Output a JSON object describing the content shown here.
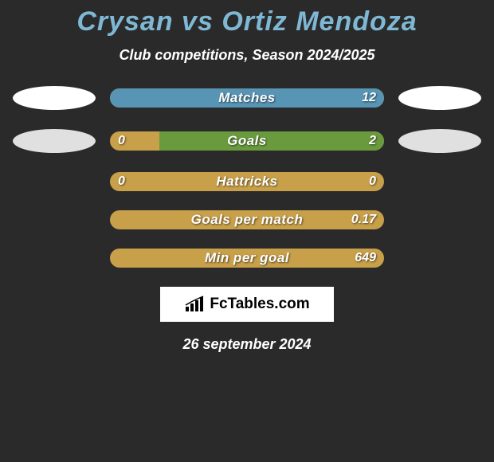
{
  "title": "Crysan vs Ortiz Mendoza",
  "subtitle": "Club competitions, Season 2024/2025",
  "date": "26 september 2024",
  "logo_text": "FcTables.com",
  "colors": {
    "background": "#2a2a2a",
    "title": "#7fb8d4",
    "text": "#ffffff",
    "bar_base": "#c8a04a",
    "bar_blue": "#5895b5",
    "bar_green": "#6a9a3e",
    "ellipse_white": "#ffffff",
    "ellipse_gray": "#e0e0e0",
    "logo_bg": "#ffffff"
  },
  "stats": [
    {
      "label": "Matches",
      "left_value": "",
      "right_value": "12",
      "left_pct": 0,
      "right_pct": 100,
      "right_color": "#5895b5",
      "show_ellipses": true,
      "left_ellipse": "white",
      "right_ellipse": "white"
    },
    {
      "label": "Goals",
      "left_value": "0",
      "right_value": "2",
      "left_pct": 0,
      "right_pct": 82,
      "right_color": "#6a9a3e",
      "show_ellipses": true,
      "left_ellipse": "gray",
      "right_ellipse": "gray"
    },
    {
      "label": "Hattricks",
      "left_value": "0",
      "right_value": "0",
      "left_pct": 0,
      "right_pct": 0,
      "right_color": "#c8a04a",
      "show_ellipses": false
    },
    {
      "label": "Goals per match",
      "left_value": "",
      "right_value": "0.17",
      "left_pct": 0,
      "right_pct": 0,
      "right_color": "#c8a04a",
      "show_ellipses": false
    },
    {
      "label": "Min per goal",
      "left_value": "",
      "right_value": "649",
      "left_pct": 0,
      "right_pct": 0,
      "right_color": "#c8a04a",
      "show_ellipses": false
    }
  ]
}
